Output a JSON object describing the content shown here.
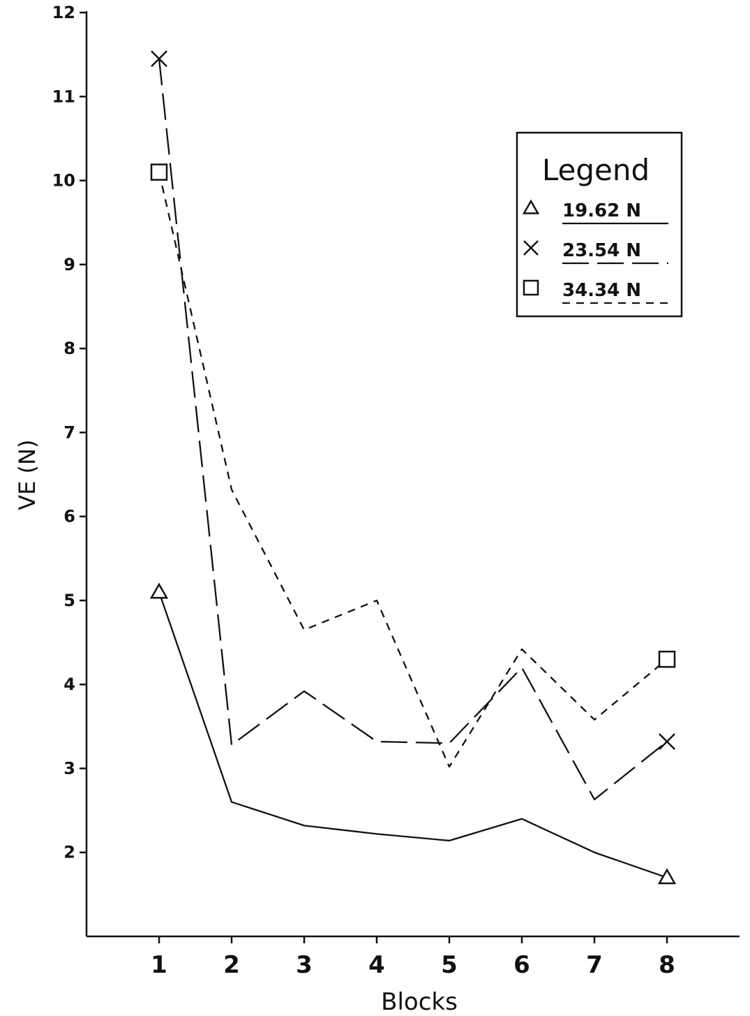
{
  "chart_data": {
    "type": "line",
    "xlabel": "Blocks",
    "ylabel": "VE (N)",
    "x": [
      1,
      2,
      3,
      4,
      5,
      6,
      7,
      8
    ],
    "xlim": [
      0,
      9
    ],
    "ylim": [
      1,
      12
    ],
    "yticks": [
      2,
      3,
      4,
      5,
      6,
      7,
      8,
      9,
      10,
      11,
      12
    ],
    "grid": false,
    "legend": {
      "title": "Legend",
      "placement": "top-right"
    },
    "series": [
      {
        "name": "19.62 N",
        "marker": "triangle",
        "line_style": "solid",
        "values": [
          5.1,
          2.6,
          2.32,
          2.22,
          2.14,
          2.4,
          2.0,
          1.7
        ]
      },
      {
        "name": "23.54 N",
        "marker": "x",
        "line_style": "long-dash",
        "values": [
          11.45,
          3.28,
          3.92,
          3.32,
          3.3,
          4.2,
          2.63,
          3.32
        ]
      },
      {
        "name": "34.34 N",
        "marker": "square",
        "line_style": "short-dash",
        "values": [
          10.1,
          6.32,
          4.65,
          5.0,
          3.02,
          4.42,
          3.58,
          4.3
        ]
      }
    ]
  }
}
